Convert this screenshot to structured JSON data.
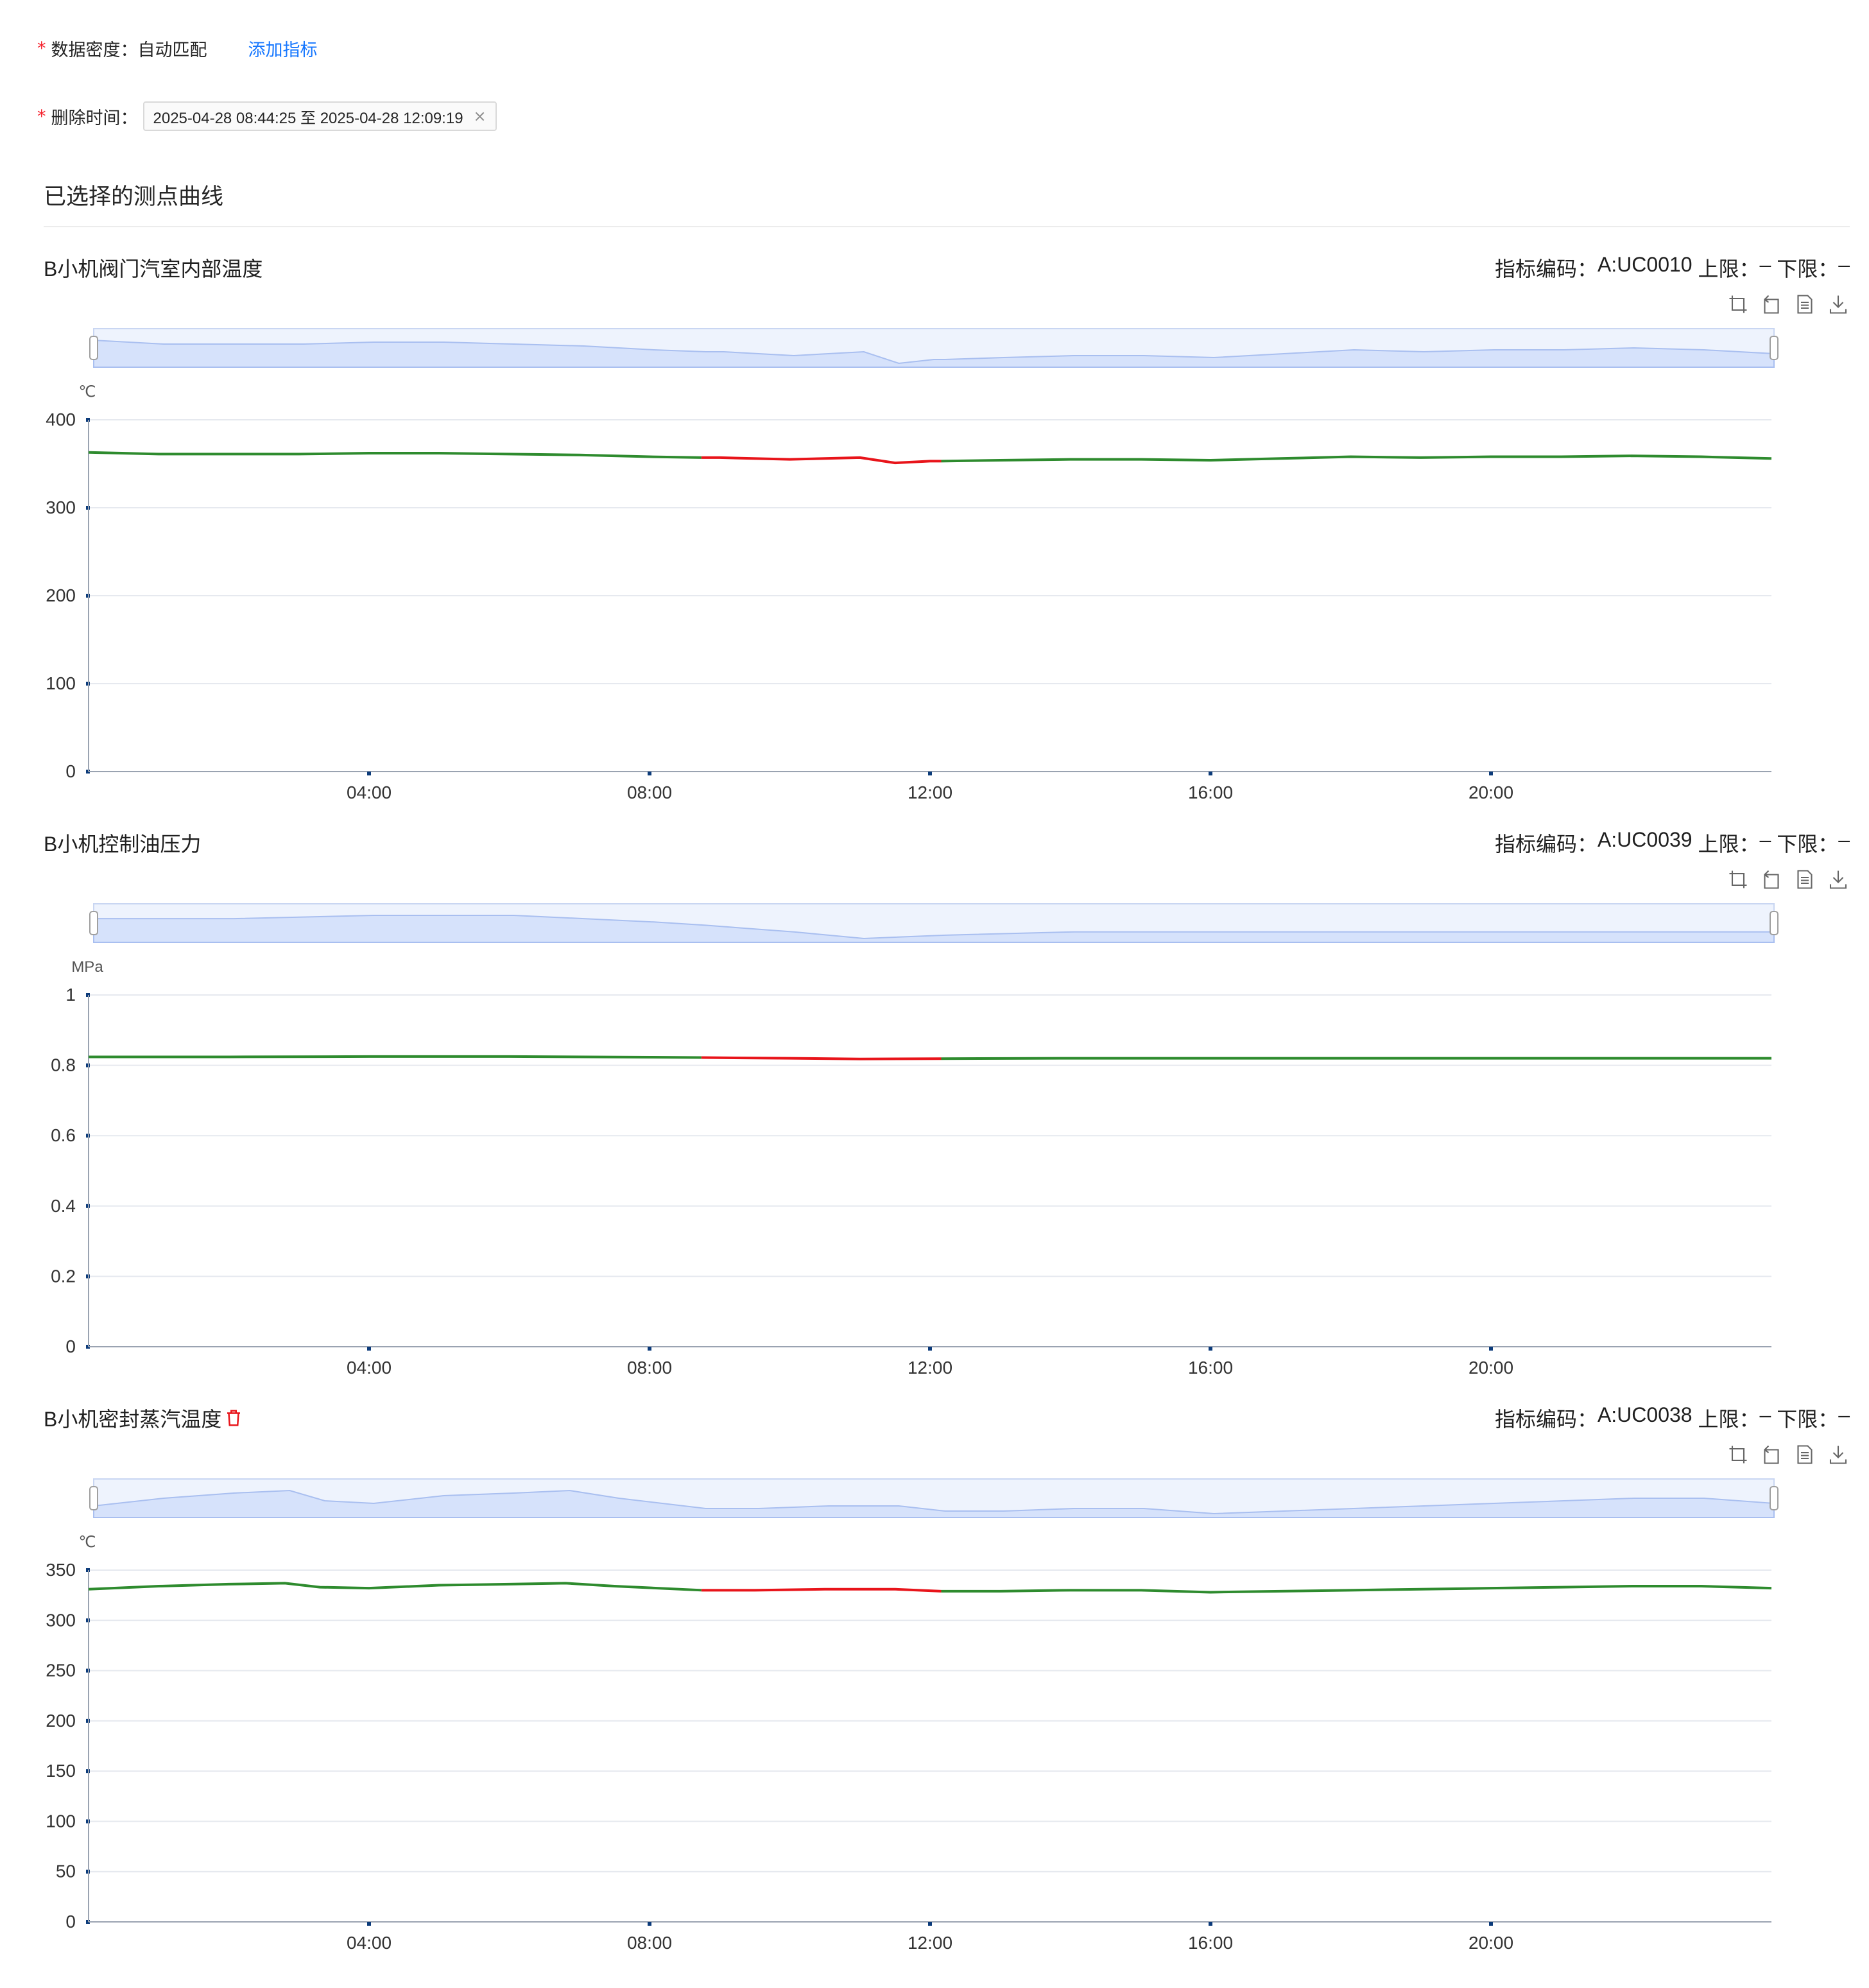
{
  "form": {
    "density_label": "数据密度：",
    "density_value": "自动匹配",
    "add_metric": "添加指标",
    "delete_label": "删除时间：",
    "delete_range": "2025-04-28 08:44:25 至 2025-04-28 12:09:19",
    "required_mark": "*",
    "close_glyph": "×"
  },
  "section_title": "已选择的测点曲线",
  "colors": {
    "normal_line": "#2e8b2e",
    "deleted_segment": "#e8141a",
    "slider_fill": "#d6e2fb",
    "axis": "#0c3b7a",
    "link": "#1677ff"
  },
  "toolbar_icons": [
    "zoom-icon",
    "zoom-reset-icon",
    "data-view-icon",
    "download-icon"
  ],
  "charts": [
    {
      "name": "B小机阀门汽室内部温度",
      "code_label": "指标编码：",
      "code": "A:UC0010",
      "upper_label": "上限：",
      "upper": "–",
      "lower_label": "下限：",
      "lower": "–",
      "has_delete_icon": false,
      "chart_data": {
        "type": "line",
        "unit": "℃",
        "ylim": [
          0,
          400
        ],
        "yticks": [
          "0",
          "100",
          "200",
          "300",
          "400"
        ],
        "xticks": [
          "04:00",
          "08:00",
          "12:00",
          "16:00",
          "20:00"
        ],
        "x_range_hours": [
          0,
          24
        ],
        "deleted_range_hours": [
          8.74,
          12.16
        ],
        "grid": true,
        "x": [
          0,
          1,
          2,
          3,
          4,
          5,
          6,
          7,
          8,
          8.74,
          9,
          10,
          11,
          11.5,
          12,
          12.16,
          13,
          14,
          15,
          16,
          17,
          18,
          19,
          20,
          21,
          22,
          23,
          24
        ],
        "y": [
          363,
          361,
          361,
          361,
          362,
          362,
          361,
          360,
          358,
          357,
          357,
          355,
          357,
          351,
          353,
          353,
          354,
          355,
          355,
          354,
          356,
          358,
          357,
          358,
          358,
          359,
          358,
          356
        ]
      }
    },
    {
      "name": "B小机控制油压力",
      "code_label": "指标编码：",
      "code": "A:UC0039",
      "upper_label": "上限：",
      "upper": "–",
      "lower_label": "下限：",
      "lower": "–",
      "has_delete_icon": false,
      "chart_data": {
        "type": "line",
        "unit": "MPa",
        "ylim": [
          0,
          1
        ],
        "yticks": [
          "0",
          "0.2",
          "0.4",
          "0.6",
          "0.8",
          "1"
        ],
        "xticks": [
          "04:00",
          "08:00",
          "12:00",
          "16:00",
          "20:00"
        ],
        "x_range_hours": [
          0,
          24
        ],
        "deleted_range_hours": [
          8.74,
          12.16
        ],
        "grid": true,
        "x": [
          0,
          2,
          4,
          6,
          8,
          8.74,
          10,
          11,
          12.16,
          14,
          16,
          18,
          20,
          22,
          24
        ],
        "y": [
          0.824,
          0.824,
          0.825,
          0.825,
          0.823,
          0.822,
          0.82,
          0.818,
          0.819,
          0.82,
          0.82,
          0.82,
          0.82,
          0.82,
          0.82
        ]
      }
    },
    {
      "name": "B小机密封蒸汽温度",
      "code_label": "指标编码：",
      "code": "A:UC0038",
      "upper_label": "上限：",
      "upper": "–",
      "lower_label": "下限：",
      "lower": "–",
      "has_delete_icon": true,
      "chart_data": {
        "type": "line",
        "unit": "℃",
        "ylim": [
          0,
          350
        ],
        "yticks": [
          "0",
          "50",
          "100",
          "150",
          "200",
          "250",
          "300",
          "350"
        ],
        "xticks": [
          "04:00",
          "08:00",
          "12:00",
          "16:00",
          "20:00"
        ],
        "x_range_hours": [
          0,
          24
        ],
        "deleted_range_hours": [
          8.74,
          12.16
        ],
        "grid": true,
        "x": [
          0,
          1,
          2,
          2.8,
          3.3,
          4,
          5,
          6,
          6.8,
          7.5,
          8.74,
          9.5,
          10.5,
          11.5,
          12.16,
          13,
          14,
          15,
          16,
          17,
          18,
          19,
          20,
          21,
          22,
          23,
          24
        ],
        "y": [
          331,
          334,
          336,
          337,
          333,
          332,
          335,
          336,
          337,
          334,
          330,
          330,
          331,
          331,
          329,
          329,
          330,
          330,
          328,
          329,
          330,
          331,
          332,
          333,
          334,
          334,
          332
        ]
      }
    }
  ]
}
